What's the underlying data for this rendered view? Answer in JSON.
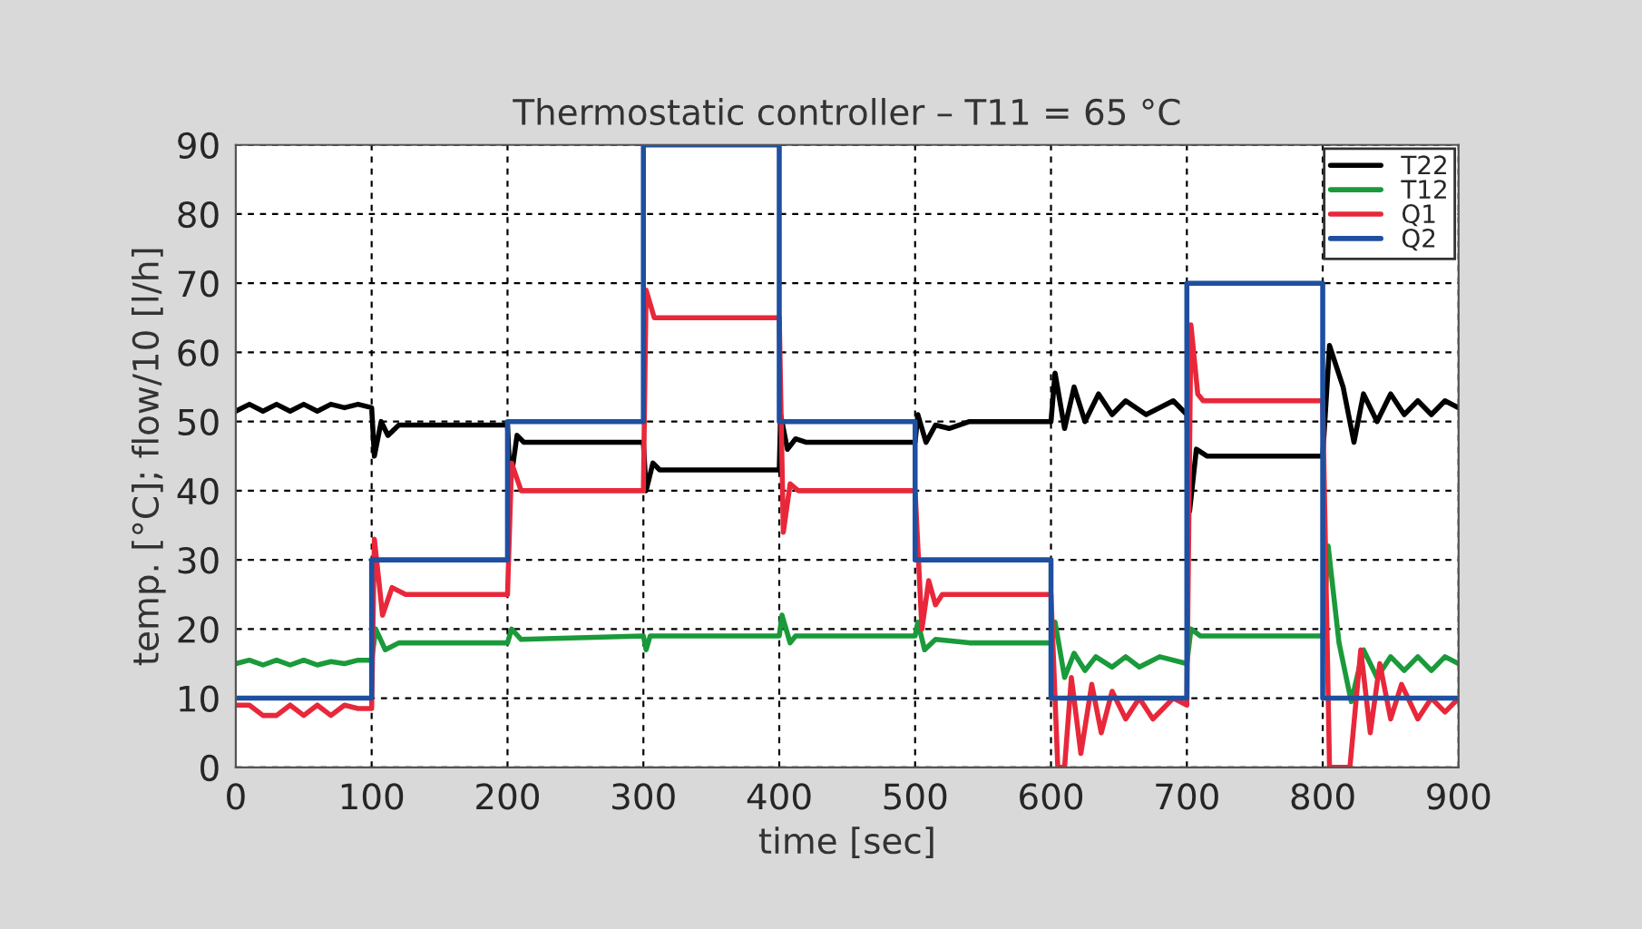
{
  "chart_data": {
    "type": "line",
    "title": "Thermostatic controller – T11 = 65 °C",
    "xlabel": "time [sec]",
    "ylabel": "temp. [°C]; flow/10 [l/h]",
    "xlim": [
      0,
      900
    ],
    "ylim": [
      0,
      90
    ],
    "xticks": [
      0,
      100,
      200,
      300,
      400,
      500,
      600,
      700,
      800,
      900
    ],
    "yticks": [
      0,
      10,
      20,
      30,
      40,
      50,
      60,
      70,
      80,
      90
    ],
    "grid": true,
    "legend": "top right",
    "line_style": "solid",
    "marker": "none",
    "series": [
      {
        "name": "T22",
        "color": "#000000",
        "x": [
          0,
          10,
          20,
          30,
          40,
          50,
          60,
          70,
          80,
          90,
          100,
          102,
          107,
          112,
          120,
          200,
          202,
          207,
          212,
          300,
          302,
          307,
          312,
          400,
          401,
          406,
          412,
          420,
          500,
          502,
          508,
          515,
          525,
          540,
          600,
          603,
          610,
          617,
          625,
          635,
          645,
          655,
          670,
          690,
          700,
          702,
          707,
          715,
          800,
          805,
          815,
          823,
          830,
          840,
          850,
          860,
          870,
          880,
          890,
          900
        ],
        "values": [
          51.5,
          52.5,
          51.5,
          52.5,
          51.5,
          52.5,
          51.5,
          52.5,
          52,
          52.5,
          52,
          45,
          50,
          48,
          49.5,
          49.5,
          41,
          48,
          47,
          47,
          40,
          44,
          43,
          43,
          51,
          46,
          47.5,
          47,
          47,
          51,
          47,
          49.5,
          49,
          50,
          50,
          57,
          49,
          55,
          50,
          54,
          51,
          53,
          51,
          53,
          51,
          37,
          46,
          45,
          45,
          61,
          55,
          47,
          54,
          50,
          54,
          51,
          53,
          51,
          53,
          52
        ]
      },
      {
        "name": "T12",
        "color": "#1a9a3a",
        "x": [
          0,
          10,
          20,
          30,
          40,
          50,
          60,
          70,
          80,
          90,
          100,
          103,
          110,
          120,
          200,
          203,
          210,
          300,
          302,
          305,
          400,
          402,
          408,
          412,
          500,
          502,
          507,
          515,
          540,
          600,
          603,
          610,
          617,
          625,
          633,
          645,
          655,
          665,
          680,
          700,
          703,
          710,
          800,
          804,
          812,
          821,
          830,
          840,
          850,
          860,
          870,
          880,
          890,
          900
        ],
        "values": [
          15,
          15.5,
          14.8,
          15.5,
          14.8,
          15.5,
          14.8,
          15.3,
          15,
          15.5,
          15.5,
          20,
          17,
          18,
          18,
          20,
          18.5,
          19,
          17,
          19,
          19,
          22,
          18,
          19,
          19,
          21,
          17,
          18.5,
          18,
          18,
          21,
          13,
          16.5,
          14,
          16,
          14.5,
          16,
          14.5,
          16,
          15,
          20,
          19,
          19,
          32,
          18,
          9.5,
          17,
          13,
          16,
          14,
          16,
          14,
          16,
          15
        ]
      },
      {
        "name": "Q1",
        "color": "#e8283a",
        "x": [
          0,
          10,
          20,
          30,
          40,
          50,
          60,
          70,
          80,
          90,
          100,
          102,
          108,
          115,
          125,
          200,
          203,
          210,
          300,
          302,
          308,
          400,
          403,
          408,
          414,
          500,
          505,
          510,
          515,
          520,
          600,
          605,
          610,
          615,
          622,
          630,
          637,
          645,
          655,
          665,
          675,
          690,
          700,
          703,
          708,
          712,
          800,
          805,
          820,
          828,
          835,
          842,
          850,
          858,
          870,
          880,
          890,
          900
        ],
        "values": [
          9,
          9,
          7.5,
          7.5,
          9,
          7.5,
          9,
          7.5,
          9,
          8.5,
          8.5,
          33,
          22,
          26,
          25,
          25,
          44,
          40,
          40,
          69,
          65,
          65,
          34,
          41,
          40,
          40,
          20,
          27,
          23.5,
          25,
          25,
          0,
          0,
          13,
          2,
          12,
          5,
          11,
          7,
          10,
          7,
          10,
          9,
          64,
          54,
          53,
          53,
          0,
          0,
          17,
          5,
          15,
          7,
          12,
          7,
          10,
          8,
          10
        ]
      },
      {
        "name": "Q2",
        "color": "#1f4fa0",
        "x": [
          0,
          100,
          100,
          200,
          200,
          300,
          300,
          400,
          400,
          500,
          500,
          600,
          600,
          700,
          700,
          800,
          800,
          900
        ],
        "values": [
          10,
          10,
          30,
          30,
          50,
          50,
          90,
          90,
          50,
          50,
          30,
          30,
          10,
          10,
          70,
          70,
          10,
          10
        ]
      }
    ]
  }
}
